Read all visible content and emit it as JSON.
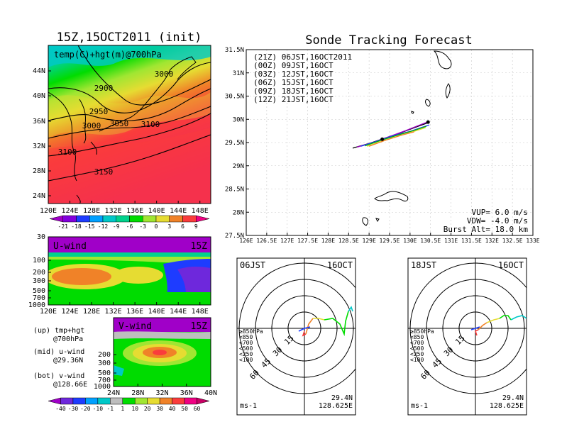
{
  "left_top": {
    "title": "15Z,15OCT2011 (init)",
    "panel_label": "temp(C)+hgt(m)@700hPa",
    "lat_labels": [
      "44N",
      "40N",
      "36N",
      "32N",
      "28N",
      "24N"
    ],
    "lon_labels": [
      "120E",
      "124E",
      "128E",
      "132E",
      "136E",
      "140E",
      "144E",
      "148E"
    ],
    "contour_labels": [
      "3000",
      "2900",
      "2950",
      "3000",
      "3050",
      "3100",
      "3100",
      "3150"
    ],
    "colorbar_labels": [
      "-21",
      "-18",
      "-15",
      "-12",
      "-9",
      "-6",
      "-3",
      "0",
      "3",
      "6",
      "9"
    ],
    "colorbar_colors": [
      "#a000c8",
      "#8200dc",
      "#1e3cff",
      "#00a0ff",
      "#00c8c8",
      "#00d28c",
      "#00dc00",
      "#a0e632",
      "#e6dc32",
      "#f08228",
      "#fa3c3c",
      "#f00082"
    ]
  },
  "u_wind": {
    "label": "U-wind",
    "time": "15Z",
    "y_labels": [
      "30",
      "100",
      "200",
      "300",
      "500",
      "700",
      "1000"
    ],
    "x_labels": [
      "120E",
      "124E",
      "128E",
      "132E",
      "136E",
      "140E",
      "144E",
      "148E"
    ]
  },
  "v_wind": {
    "label": "V-wind",
    "time": "15Z",
    "y_labels": [
      "200",
      "300",
      "500",
      "700",
      "1000"
    ],
    "x_labels": [
      "24N",
      "28N",
      "32N",
      "36N",
      "40N"
    ],
    "colorbar_labels": [
      "-40",
      "-30",
      "-20",
      "-10",
      "-1",
      "1",
      "10",
      "20",
      "30",
      "40",
      "50",
      "60"
    ],
    "colorbar_colors": [
      "#a000c8",
      "#6e28dc",
      "#1e3cff",
      "#00a0ff",
      "#00c8c8",
      "#bebebe",
      "#00dc00",
      "#a0e632",
      "#e6dc32",
      "#f08228",
      "#fa3c3c",
      "#f00082",
      "#c80064"
    ]
  },
  "legend_notes": [
    {
      "a": "(up) tmp+hgt",
      "b": "@700hPa"
    },
    {
      "a": "(mid) u-wind",
      "b": "@29.36N"
    },
    {
      "a": "(bot) v-wind",
      "b": "@128.66E"
    }
  ],
  "tracking": {
    "title": "Sonde Tracking Forecast",
    "entries": [
      {
        "text": "(21Z) 06JST,16OCT2011",
        "color": "#000000"
      },
      {
        "text": "(00Z) 09JST,16OCT",
        "color": "#a000c8"
      },
      {
        "text": "(03Z) 12JST,16OCT",
        "color": "#1e3cff"
      },
      {
        "text": "(06Z) 15JST,16OCT",
        "color": "#00b400"
      },
      {
        "text": "(09Z) 18JST,16OCT",
        "color": "#e6dc32"
      },
      {
        "text": "(12Z) 21JST,16OCT",
        "color": "#f08228"
      }
    ],
    "lat_labels": [
      "31.5N",
      "31N",
      "30.5N",
      "30N",
      "29.5N",
      "29N",
      "28.5N",
      "28N",
      "27.5N"
    ],
    "lon_labels": [
      "126E",
      "126.5E",
      "127E",
      "127.5E",
      "128E",
      "128.5E",
      "129E",
      "129.5E",
      "130E",
      "130.5E",
      "131E",
      "131.5E",
      "132E",
      "132.5E",
      "133E"
    ],
    "vup": "VUP= 6.0 m/s",
    "vdw": "VDW= -4.0 m/s",
    "burst": "Burst Alt= 18.0 km"
  },
  "hodo_left": {
    "time": "06JST",
    "date": "16OCT",
    "ring_labels": [
      "15",
      "30",
      "45",
      "60"
    ],
    "levels": [
      {
        "text": "≥850hPa",
        "color": "#fa3c3c"
      },
      {
        "text": "<850",
        "color": "#f08228"
      },
      {
        "text": "<700",
        "color": "#e6dc32"
      },
      {
        "text": "<500",
        "color": "#00dc00"
      },
      {
        "text": "<250",
        "color": "#00c8c8"
      },
      {
        "text": "<100",
        "color": "#1e3cff"
      }
    ],
    "unit": "ms-1",
    "lat": "29.4N",
    "lon": "128.625E"
  },
  "hodo_right": {
    "time": "18JST",
    "date": "16OCT",
    "ring_labels": [
      "15",
      "30",
      "45",
      "60"
    ],
    "levels": [
      {
        "text": "≥850hPa",
        "color": "#fa3c3c"
      },
      {
        "text": "<850",
        "color": "#f08228"
      },
      {
        "text": "<700",
        "color": "#e6dc32"
      },
      {
        "text": "<500",
        "color": "#00dc00"
      },
      {
        "text": "<250",
        "color": "#00c8c8"
      },
      {
        "text": "<100",
        "color": "#1e3cff"
      }
    ],
    "unit": "ms-1",
    "lat": "29.4N",
    "lon": "128.625E"
  },
  "chart_data": [
    {
      "type": "heatmap",
      "title": "15Z,15OCT2011 (init)",
      "subtitle": "temp(C)+hgt(m)@700hPa",
      "xlim": [
        120,
        150
      ],
      "ylim": [
        22,
        48
      ],
      "contour_levels": [
        2900,
        2950,
        3000,
        3050,
        3100,
        3150
      ],
      "color_levels": [
        -21,
        -18,
        -15,
        -12,
        -9,
        -6,
        -3,
        0,
        3,
        6,
        9
      ]
    },
    {
      "type": "heatmap",
      "title": "U-wind",
      "subtitle": "15Z",
      "xlim": [
        120,
        150
      ],
      "y_levels_hPa": [
        30,
        100,
        200,
        300,
        500,
        700,
        1000
      ]
    },
    {
      "type": "heatmap",
      "title": "V-wind",
      "subtitle": "15Z",
      "xlim": [
        24,
        40
      ],
      "y_levels_hPa": [
        200,
        300,
        500,
        700,
        1000
      ],
      "color_levels": [
        -40,
        -30,
        -20,
        -10,
        -1,
        1,
        10,
        20,
        30,
        40,
        50,
        60
      ]
    },
    {
      "type": "line",
      "title": "Sonde Tracking Forecast",
      "xlim": [
        126,
        133
      ],
      "ylim": [
        27.5,
        31.5
      ],
      "series": [
        {
          "name": "(21Z) 06JST,16OCT2011",
          "color": "#000000",
          "x": [
            128.6,
            129.0,
            129.4,
            129.8,
            130.2,
            130.45
          ],
          "y": [
            29.38,
            29.48,
            29.6,
            29.72,
            29.85,
            29.93
          ]
        },
        {
          "name": "(00Z) 09JST,16OCT",
          "color": "#a000c8",
          "x": [
            128.7,
            129.1,
            129.5,
            129.9,
            130.3,
            130.45
          ],
          "y": [
            29.4,
            29.5,
            29.63,
            29.76,
            29.9,
            29.95
          ]
        },
        {
          "name": "(03Z) 12JST,16OCT",
          "color": "#1e3cff",
          "x": [
            128.8,
            129.2,
            129.6,
            130.0,
            130.3,
            130.47
          ],
          "y": [
            29.42,
            29.53,
            29.65,
            29.74,
            29.83,
            29.88
          ]
        },
        {
          "name": "(06Z) 15JST,16OCT",
          "color": "#00b400",
          "x": [
            128.9,
            129.3,
            129.7,
            130.1,
            130.4
          ],
          "y": [
            29.43,
            29.55,
            29.66,
            29.76,
            29.85
          ]
        },
        {
          "name": "(09Z) 18JST,16OCT",
          "color": "#e6dc32",
          "x": [
            128.95,
            129.35,
            129.75,
            130.1,
            130.38
          ],
          "y": [
            29.42,
            29.54,
            29.65,
            29.74,
            29.82
          ]
        },
        {
          "name": "(12Z) 21JST,16OCT",
          "color": "#f08228",
          "x": [
            129.0,
            129.4,
            129.8,
            130.1
          ],
          "y": [
            29.42,
            29.55,
            29.66,
            29.73
          ]
        }
      ],
      "markers": [
        {
          "x": 129.32,
          "y": 29.57
        },
        {
          "x": 130.44,
          "y": 29.94
        }
      ]
    }
  ]
}
